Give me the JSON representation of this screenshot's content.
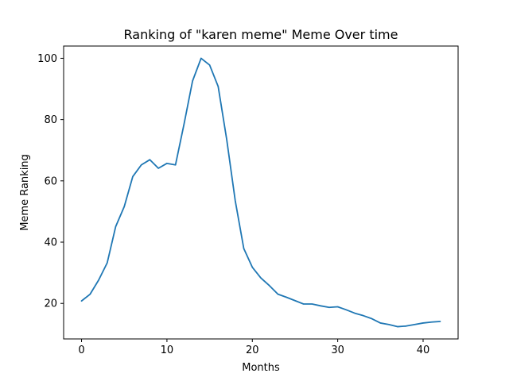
{
  "chart_data": {
    "type": "line",
    "title": "Ranking of \"karen meme\" Meme Over time",
    "xlabel": "Months",
    "ylabel": "Meme Ranking",
    "xlim": [
      -2.1,
      44.1
    ],
    "ylim": [
      8.4,
      104.0
    ],
    "xticks": [
      0,
      10,
      20,
      30,
      40
    ],
    "yticks": [
      20,
      40,
      60,
      80,
      100
    ],
    "grid": false,
    "legend": "none",
    "series": [
      {
        "color": "#1f77b4",
        "x": [
          0,
          1,
          2,
          3,
          4,
          5,
          6,
          7,
          8,
          9,
          10,
          11,
          12,
          13,
          14,
          15,
          16,
          17,
          18,
          19,
          20,
          21,
          22,
          23,
          24,
          25,
          26,
          27,
          28,
          29,
          30,
          31,
          32,
          33,
          34,
          35,
          36,
          37,
          38,
          39,
          40,
          41,
          42
        ],
        "y": [
          20.8,
          23.0,
          27.6,
          33.2,
          45.1,
          51.6,
          61.4,
          65.2,
          66.9,
          64.1,
          65.7,
          65.2,
          78.5,
          92.6,
          100.0,
          97.8,
          90.8,
          73.5,
          53.5,
          37.9,
          31.8,
          28.3,
          25.8,
          23.0,
          22.0,
          20.9,
          19.8,
          19.8,
          19.2,
          18.7,
          18.9,
          17.9,
          16.8,
          16.0,
          15.0,
          13.6,
          13.1,
          12.4,
          12.6,
          13.1,
          13.6,
          13.9,
          14.1
        ]
      }
    ]
  }
}
